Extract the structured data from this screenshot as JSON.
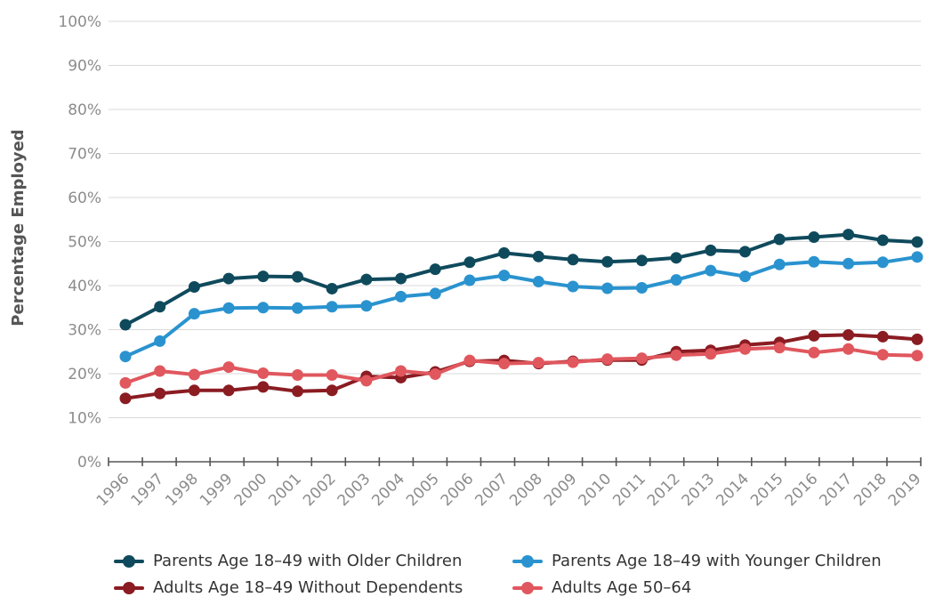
{
  "chart_data": {
    "type": "line",
    "title": "",
    "xlabel": "",
    "ylabel": "Percentage Employed",
    "ylim": [
      0,
      100
    ],
    "yticks": [
      "0%",
      "10%",
      "20%",
      "30%",
      "40%",
      "50%",
      "60%",
      "70%",
      "80%",
      "90%",
      "100%"
    ],
    "grid": true,
    "legend_position": "bottom",
    "categories": [
      "1996",
      "1997",
      "1998",
      "1999",
      "2000",
      "2001",
      "2002",
      "2003",
      "2004",
      "2005",
      "2006",
      "2007",
      "2008",
      "2009",
      "2010",
      "2011",
      "2012",
      "2013",
      "2014",
      "2015",
      "2016",
      "2017",
      "2018",
      "2019"
    ],
    "series": [
      {
        "name": "Parents Age 18–49 with Older Children",
        "color": "#0f4a5c",
        "values": [
          31.1,
          35.2,
          39.7,
          41.6,
          42.1,
          42.0,
          39.3,
          41.4,
          41.6,
          43.7,
          45.3,
          47.4,
          46.6,
          45.9,
          45.4,
          45.7,
          46.3,
          48.0,
          47.7,
          50.5,
          51.0,
          51.6,
          50.3,
          49.9
        ]
      },
      {
        "name": "Parents Age 18–49 with Younger Children",
        "color": "#2a93cf",
        "values": [
          23.9,
          27.4,
          33.6,
          34.9,
          35.0,
          34.9,
          35.2,
          35.4,
          37.5,
          38.2,
          41.2,
          42.3,
          40.9,
          39.8,
          39.4,
          39.5,
          41.3,
          43.4,
          42.1,
          44.8,
          45.4,
          45.0,
          45.3,
          46.5
        ]
      },
      {
        "name": "Adults Age 18–49 Without Dependents",
        "color": "#8a1c22",
        "values": [
          14.4,
          15.5,
          16.2,
          16.2,
          17.0,
          16.0,
          16.2,
          19.4,
          19.1,
          20.4,
          22.8,
          23.0,
          22.3,
          22.8,
          23.1,
          23.1,
          25.0,
          25.3,
          26.5,
          27.1,
          28.6,
          28.8,
          28.4,
          27.8
        ]
      },
      {
        "name": "Adults Age 50–64",
        "color": "#e0575e",
        "values": [
          17.9,
          20.6,
          19.8,
          21.5,
          20.1,
          19.7,
          19.7,
          18.4,
          20.6,
          19.9,
          23.0,
          22.3,
          22.5,
          22.6,
          23.3,
          23.5,
          24.2,
          24.5,
          25.6,
          25.9,
          24.8,
          25.6,
          24.3,
          24.1
        ]
      }
    ]
  }
}
